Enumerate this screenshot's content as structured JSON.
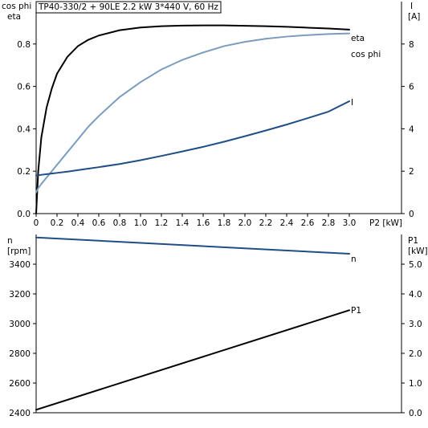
{
  "title": "TP40-330/2 + 90LE   2.2 kW   3*440 V, 60 Hz",
  "colors": {
    "eta": "#000000",
    "cos_phi": "#7a9cbf",
    "I": "#1f4e86",
    "n": "#1f4e86",
    "P1": "#000000"
  },
  "chart_data": [
    {
      "type": "line",
      "x": [
        0.0,
        0.02,
        0.05,
        0.1,
        0.15,
        0.2,
        0.3,
        0.4,
        0.5,
        0.6,
        0.8,
        1.0,
        1.2,
        1.4,
        1.6,
        1.8,
        2.0,
        2.2,
        2.4,
        2.6,
        2.8,
        3.0
      ],
      "xlabel": "P2 [kW]",
      "xlim": [
        0,
        3.0
      ],
      "xticks": [
        "0",
        "0.2",
        "0.4",
        "0.6",
        "0.8",
        "1.0",
        "1.2",
        "1.4",
        "1.6",
        "1.8",
        "2.0",
        "2.2",
        "2.4",
        "2.6",
        "2.8",
        "3.0"
      ],
      "left_axis": {
        "label_line1": "cos phi",
        "label_line2": "eta",
        "ylim": [
          0,
          1.0
        ],
        "ticks": [
          "0.0",
          "0.2",
          "0.4",
          "0.6",
          "0.8"
        ]
      },
      "right_axis": {
        "label_line1": "I",
        "label_line2": "[A]",
        "ylim": [
          0,
          10
        ],
        "ticks": [
          "0",
          "2",
          "4",
          "6",
          "8"
        ]
      },
      "series": [
        {
          "name": "eta",
          "axis": "left",
          "values": [
            0.0,
            0.2,
            0.36,
            0.5,
            0.59,
            0.66,
            0.74,
            0.79,
            0.82,
            0.84,
            0.865,
            0.878,
            0.884,
            0.887,
            0.888,
            0.888,
            0.886,
            0.884,
            0.881,
            0.877,
            0.873,
            0.868
          ]
        },
        {
          "name": "cos phi",
          "axis": "left",
          "values": [
            0.1,
            0.12,
            0.14,
            0.17,
            0.2,
            0.23,
            0.29,
            0.35,
            0.41,
            0.46,
            0.55,
            0.62,
            0.68,
            0.725,
            0.76,
            0.79,
            0.81,
            0.825,
            0.835,
            0.842,
            0.847,
            0.85
          ]
        },
        {
          "name": "I",
          "axis": "right",
          "values": [
            1.8,
            1.81,
            1.83,
            1.86,
            1.89,
            1.92,
            1.98,
            2.05,
            2.12,
            2.19,
            2.34,
            2.52,
            2.72,
            2.93,
            3.15,
            3.39,
            3.65,
            3.92,
            4.2,
            4.5,
            4.81,
            5.3
          ]
        }
      ]
    },
    {
      "type": "line",
      "x": [
        0.0,
        3.0
      ],
      "xlim": [
        0,
        3.0
      ],
      "left_axis": {
        "label_line1": "n",
        "label_line2": "[rpm]",
        "ylim": [
          2400,
          3600
        ],
        "ticks": [
          "2400",
          "2600",
          "2800",
          "3000",
          "3200",
          "3400"
        ]
      },
      "right_axis": {
        "label_line1": "P1",
        "label_line2": "[kW]",
        "ylim": [
          0,
          6.0
        ],
        "ticks": [
          "0.0",
          "1.0",
          "2.0",
          "3.0",
          "4.0",
          "5.0"
        ]
      },
      "series": [
        {
          "name": "n",
          "axis": "left",
          "values": [
            3580,
            3470
          ]
        },
        {
          "name": "P1",
          "axis": "right",
          "values": [
            0.1,
            3.45
          ]
        }
      ]
    }
  ]
}
